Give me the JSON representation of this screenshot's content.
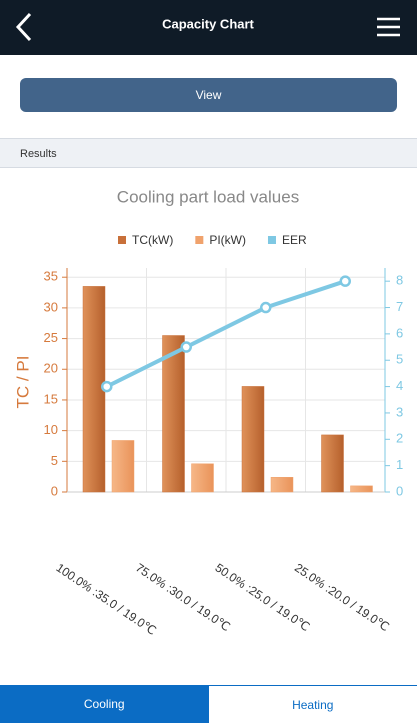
{
  "header": {
    "title": "Capacity Chart"
  },
  "button": {
    "label": "View"
  },
  "section": {
    "label": "Results"
  },
  "chart_data": {
    "type": "bar",
    "title": "Cooling part load values",
    "y_label": "TC / PI",
    "categories": [
      "100.0% :35.0 / 19.0℃",
      "75.0% :30.0 / 19.0℃",
      "50.0% :25.0 / 19.0℃",
      "25.0% :20.0 / 19.0℃"
    ],
    "series": [
      {
        "name": "TC(kW)",
        "color": "#c8703a",
        "values": [
          33.5,
          25.5,
          17.2,
          9.3
        ]
      },
      {
        "name": "PI(kW)",
        "color": "#f0a26c",
        "values": [
          8.4,
          4.6,
          2.4,
          1.0
        ]
      },
      {
        "name": "EER",
        "color": "#7ec8e3",
        "type": "line",
        "axis": "y2",
        "values": [
          4.0,
          5.5,
          7.0,
          8.0
        ]
      }
    ],
    "ylim": [
      0,
      36.5
    ],
    "yticks": [
      0,
      5,
      10,
      15,
      20,
      25,
      30,
      35
    ],
    "y2lim": [
      0,
      8.5
    ],
    "y2ticks": [
      0,
      1,
      2,
      3,
      4,
      5,
      6,
      7,
      8
    ],
    "grid": true
  },
  "tabs": [
    "Cooling",
    "Heating"
  ]
}
